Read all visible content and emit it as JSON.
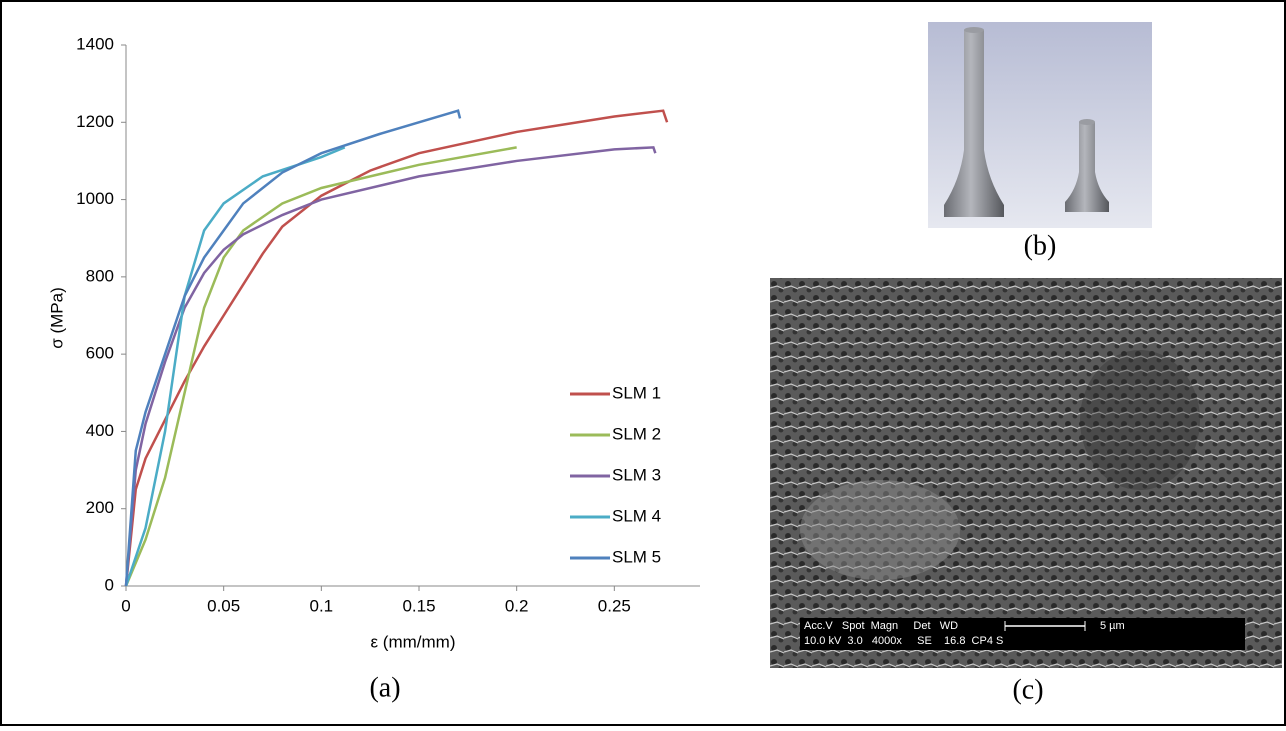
{
  "chart_data": {
    "type": "line",
    "x_label": "ε (mm/mm)",
    "y_label": "σ (MPa)",
    "xlim": [
      0,
      0.3
    ],
    "ylim": [
      0,
      1400
    ],
    "xticks": [
      0,
      0.05,
      0.1,
      0.15,
      0.2,
      0.25
    ],
    "yticks": [
      0,
      200,
      400,
      600,
      800,
      1000,
      1200,
      1400
    ],
    "legend": "right",
    "series": [
      {
        "name": "SLM 1",
        "color": "#c0504d",
        "x": [
          0,
          0.005,
          0.01,
          0.02,
          0.03,
          0.04,
          0.05,
          0.06,
          0.07,
          0.08,
          0.1,
          0.125,
          0.15,
          0.2,
          0.25,
          0.275,
          0.277
        ],
        "values": [
          0,
          250,
          330,
          430,
          530,
          620,
          700,
          780,
          860,
          930,
          1010,
          1075,
          1120,
          1175,
          1215,
          1230,
          1200
        ]
      },
      {
        "name": "SLM 2",
        "color": "#9bbb59",
        "x": [
          0,
          0.01,
          0.02,
          0.03,
          0.04,
          0.05,
          0.06,
          0.08,
          0.1,
          0.15,
          0.2
        ],
        "values": [
          0,
          120,
          280,
          500,
          720,
          850,
          920,
          990,
          1030,
          1090,
          1135
        ]
      },
      {
        "name": "SLM 3",
        "color": "#8064a2",
        "x": [
          0,
          0.005,
          0.01,
          0.02,
          0.03,
          0.04,
          0.05,
          0.06,
          0.08,
          0.1,
          0.15,
          0.2,
          0.25,
          0.27,
          0.271
        ],
        "values": [
          0,
          300,
          420,
          580,
          720,
          810,
          870,
          910,
          960,
          1000,
          1060,
          1100,
          1130,
          1135,
          1120
        ]
      },
      {
        "name": "SLM 4",
        "color": "#4bacc6",
        "x": [
          0,
          0.01,
          0.02,
          0.03,
          0.04,
          0.05,
          0.07,
          0.1,
          0.112
        ],
        "values": [
          0,
          150,
          400,
          750,
          920,
          990,
          1060,
          1110,
          1135
        ]
      },
      {
        "name": "SLM 5",
        "color": "#4f81bd",
        "x": [
          0,
          0.005,
          0.01,
          0.02,
          0.03,
          0.04,
          0.05,
          0.06,
          0.08,
          0.1,
          0.13,
          0.17,
          0.171
        ],
        "values": [
          0,
          350,
          450,
          600,
          750,
          850,
          920,
          990,
          1070,
          1120,
          1170,
          1230,
          1210
        ]
      }
    ]
  },
  "panels": {
    "a": "(a)",
    "b": "(b)",
    "c": "(c)",
    "sem": {
      "line1": "Acc.V   Spot  Magn     Det   WD",
      "line2": "10.0 kV  3.0   4000x     SE    16.8  CP4 S",
      "scale": "5 µm"
    }
  }
}
